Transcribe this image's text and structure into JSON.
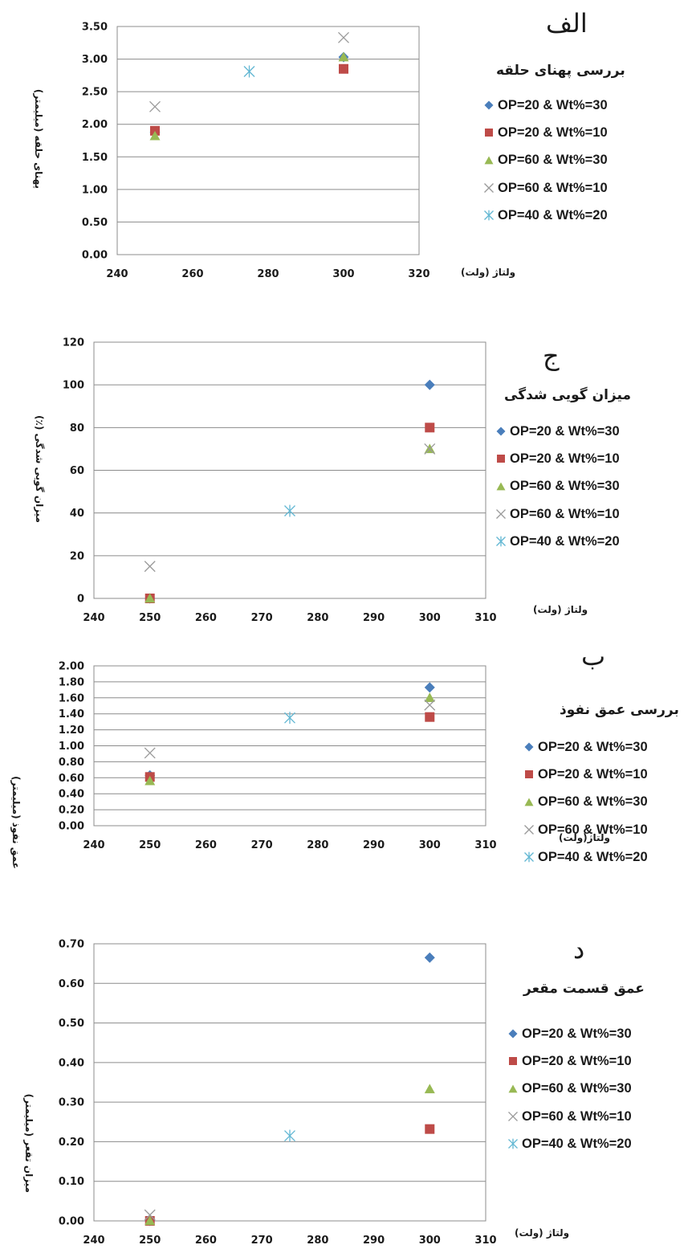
{
  "series_styles": [
    {
      "name": "OP=20 & Wt%=30",
      "marker": "diamond",
      "color": "#4a7ebb"
    },
    {
      "name": "OP=20 & Wt%=10",
      "marker": "square",
      "color": "#be4b48"
    },
    {
      "name": "OP=60 & Wt%=30",
      "marker": "triangle",
      "color": "#98b954"
    },
    {
      "name": "OP=60 & Wt%=10",
      "marker": "x",
      "color": "#9a9a9a"
    },
    {
      "name": "OP=40 & Wt%=20",
      "marker": "star",
      "color": "#62b7d3"
    }
  ],
  "chart_data": [
    {
      "type": "scatter",
      "panel_letter": "الف",
      "title": "بررسی پهنای حلقه",
      "xlabel": "ولتاژ (ولت)",
      "ylabel": "پهنای حلقه (میلیمتر)",
      "xlim": [
        240,
        320
      ],
      "ylim": [
        0,
        3.5
      ],
      "x_ticks": [
        "240",
        "260",
        "280",
        "300",
        "320"
      ],
      "y_ticks": [
        "0.00",
        "0.50",
        "1.00",
        "1.50",
        "2.00",
        "2.50",
        "3.00",
        "3.50"
      ],
      "grid": "horizontal",
      "legend_position": "right",
      "series": [
        {
          "name": "OP=20 & Wt%=30",
          "points": [
            [
              250,
              1.88
            ],
            [
              300,
              3.03
            ]
          ]
        },
        {
          "name": "OP=20 & Wt%=10",
          "points": [
            [
              250,
              1.9
            ],
            [
              300,
              2.85
            ]
          ]
        },
        {
          "name": "OP=60 & Wt%=30",
          "points": [
            [
              250,
              1.82
            ],
            [
              300,
              3.03
            ]
          ]
        },
        {
          "name": "OP=60 & Wt%=10",
          "points": [
            [
              250,
              2.27
            ],
            [
              300,
              3.33
            ]
          ]
        },
        {
          "name": "OP=40 & Wt%=20",
          "points": [
            [
              275,
              2.81
            ]
          ]
        }
      ]
    },
    {
      "type": "scatter",
      "panel_letter": "ج",
      "title": "میزان گویی شدگی",
      "xlabel": "ولتاژ (ولت)",
      "ylabel": "میزان گویی شدگی (٪)",
      "xlim": [
        240,
        310
      ],
      "ylim": [
        0,
        120
      ],
      "x_ticks": [
        "240",
        "250",
        "260",
        "270",
        "280",
        "290",
        "300",
        "310"
      ],
      "y_ticks": [
        "0",
        "20",
        "40",
        "60",
        "80",
        "100",
        "120"
      ],
      "grid": "horizontal",
      "legend_position": "right",
      "series": [
        {
          "name": "OP=20 & Wt%=30",
          "points": [
            [
              250,
              0
            ],
            [
              300,
              100
            ]
          ]
        },
        {
          "name": "OP=20 & Wt%=10",
          "points": [
            [
              250,
              0
            ],
            [
              300,
              80
            ]
          ]
        },
        {
          "name": "OP=60 & Wt%=30",
          "points": [
            [
              250,
              0
            ],
            [
              300,
              70
            ]
          ]
        },
        {
          "name": "OP=60 & Wt%=10",
          "points": [
            [
              250,
              15
            ],
            [
              300,
              70
            ]
          ]
        },
        {
          "name": "OP=40 & Wt%=20",
          "points": [
            [
              275,
              41
            ]
          ]
        }
      ]
    },
    {
      "type": "scatter",
      "panel_letter": "ب",
      "title": "بررسی عمق نفوذ",
      "xlabel": "ولتاژ(ولت)",
      "ylabel": "عمق نفوذ (میلیمتر)",
      "xlim": [
        240,
        310
      ],
      "ylim": [
        0,
        2
      ],
      "x_ticks": [
        "240",
        "250",
        "260",
        "270",
        "280",
        "290",
        "300",
        "310"
      ],
      "y_ticks": [
        "0.00",
        "0.20",
        "0.40",
        "0.60",
        "0.80",
        "1.00",
        "1.20",
        "1.40",
        "1.60",
        "1.80",
        "2.00"
      ],
      "grid": "horizontal",
      "legend_position": "right",
      "series": [
        {
          "name": "OP=20 & Wt%=30",
          "points": [
            [
              250,
              0.63
            ],
            [
              300,
              1.73
            ]
          ]
        },
        {
          "name": "OP=20 & Wt%=10",
          "points": [
            [
              250,
              0.61
            ],
            [
              300,
              1.36
            ]
          ]
        },
        {
          "name": "OP=60 & Wt%=30",
          "points": [
            [
              250,
              0.56
            ],
            [
              300,
              1.6
            ]
          ]
        },
        {
          "name": "OP=60 & Wt%=10",
          "points": [
            [
              250,
              0.91
            ],
            [
              300,
              1.51
            ]
          ]
        },
        {
          "name": "OP=40 & Wt%=20",
          "points": [
            [
              275,
              1.35
            ]
          ]
        }
      ]
    },
    {
      "type": "scatter",
      "panel_letter": "د",
      "title": "عمق قسمت مقعر",
      "xlabel": "ولتاژ (ولت)",
      "ylabel": "میزان تقعر (میلیمتر)",
      "xlim": [
        240,
        310
      ],
      "ylim": [
        0,
        0.7
      ],
      "x_ticks": [
        "240",
        "250",
        "260",
        "270",
        "280",
        "290",
        "300",
        "310"
      ],
      "y_ticks": [
        "0.00",
        "0.10",
        "0.20",
        "0.30",
        "0.40",
        "0.50",
        "0.60",
        "0.70"
      ],
      "grid": "horizontal",
      "legend_position": "right",
      "series": [
        {
          "name": "OP=20 & Wt%=30",
          "points": [
            [
              250,
              0
            ],
            [
              300,
              0.665
            ]
          ]
        },
        {
          "name": "OP=20 & Wt%=10",
          "points": [
            [
              250,
              0
            ],
            [
              300,
              0.232
            ]
          ]
        },
        {
          "name": "OP=60 & Wt%=30",
          "points": [
            [
              250,
              0
            ],
            [
              300,
              0.333
            ]
          ]
        },
        {
          "name": "OP=60 & Wt%=10",
          "points": [
            [
              250,
              0.015
            ]
          ]
        },
        {
          "name": "OP=40 & Wt%=20",
          "points": [
            [
              275,
              0.215
            ]
          ]
        }
      ]
    }
  ]
}
